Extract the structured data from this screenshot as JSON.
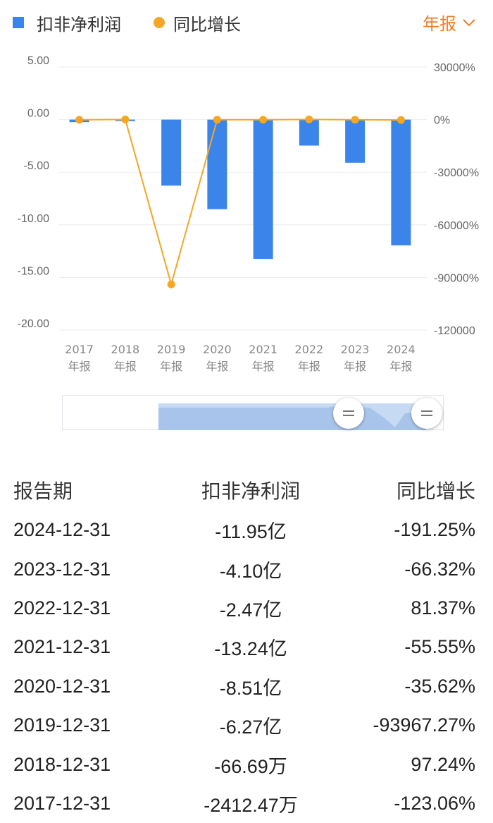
{
  "legend": {
    "series1": "扣非净利润",
    "series2": "同比增长"
  },
  "period_select": {
    "label": "年报"
  },
  "colors": {
    "bar": "#3a84ea",
    "line": "#f5a623",
    "accent": "#ef7d2a",
    "positive": "#d71c1c",
    "negative": "#1a9a2a"
  },
  "chart_data": {
    "type": "bar+line",
    "categories": [
      "2017\n年报",
      "2018\n年报",
      "2019\n年报",
      "2020\n年报",
      "2021\n年报",
      "2022\n年报",
      "2023\n年报",
      "2024\n年报"
    ],
    "series": [
      {
        "name": "扣非净利润",
        "type": "bar",
        "axis": "left",
        "values": [
          -0.2412,
          -0.0067,
          -6.27,
          -8.51,
          -13.24,
          -2.47,
          -4.1,
          -11.95
        ]
      },
      {
        "name": "同比增长",
        "type": "line",
        "axis": "right",
        "values": [
          -123.06,
          97.24,
          -93967.27,
          -35.62,
          -55.55,
          81.37,
          -66.32,
          -191.25
        ]
      }
    ],
    "y_left": {
      "ticks": [
        "5.00",
        "0.00",
        "-5.00",
        "-10.00",
        "-15.00",
        "-20.00"
      ],
      "range": [
        -20,
        5
      ]
    },
    "y_right": {
      "ticks": [
        "30000%",
        "0%",
        "-30000%",
        "-60000%",
        "-90000%",
        "-120000"
      ],
      "range": [
        -120000,
        30000
      ]
    },
    "grid": true,
    "legend_position": "top-left"
  },
  "table": {
    "headers": [
      "报告期",
      "扣非净利润",
      "同比增长"
    ],
    "rows": [
      {
        "date": "2024-12-31",
        "profit": "-11.95亿",
        "growth": "-191.25%",
        "sign": "neg"
      },
      {
        "date": "2023-12-31",
        "profit": "-4.10亿",
        "growth": "-66.32%",
        "sign": "neg"
      },
      {
        "date": "2022-12-31",
        "profit": "-2.47亿",
        "growth": "81.37%",
        "sign": "pos"
      },
      {
        "date": "2021-12-31",
        "profit": "-13.24亿",
        "growth": "-55.55%",
        "sign": "neg"
      },
      {
        "date": "2020-12-31",
        "profit": "-8.51亿",
        "growth": "-35.62%",
        "sign": "neg"
      },
      {
        "date": "2019-12-31",
        "profit": "-6.27亿",
        "growth": "-93967.27%",
        "sign": "neg"
      },
      {
        "date": "2018-12-31",
        "profit": "-66.69万",
        "growth": "97.24%",
        "sign": "pos"
      },
      {
        "date": "2017-12-31",
        "profit": "-2412.47万",
        "growth": "-123.06%",
        "sign": "neg"
      }
    ]
  }
}
